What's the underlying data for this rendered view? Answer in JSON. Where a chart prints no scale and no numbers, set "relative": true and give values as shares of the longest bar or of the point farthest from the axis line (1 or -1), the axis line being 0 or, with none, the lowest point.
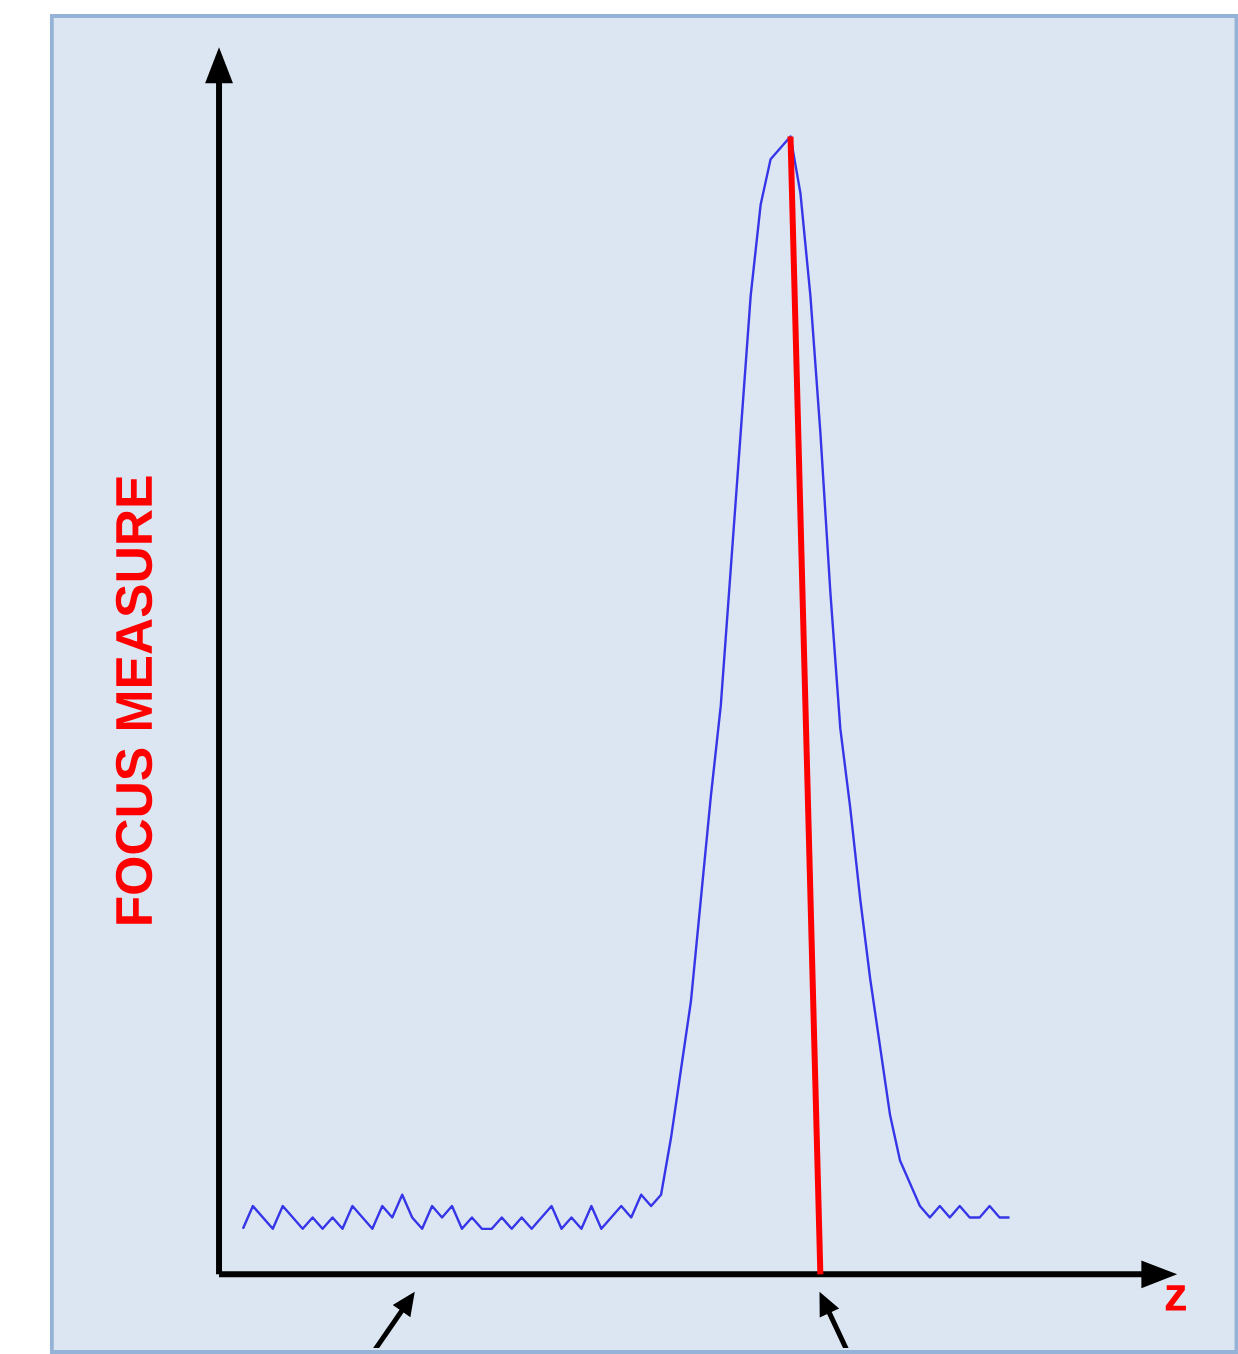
{
  "chart_data": {
    "type": "line",
    "relative": true,
    "xlabel": "z",
    "ylabel": "FOCUS MEASURE",
    "categories": [
      null,
      null,
      null,
      null,
      null,
      null,
      null,
      null,
      null,
      null,
      null,
      null,
      null,
      null,
      null,
      null,
      null,
      null,
      null,
      null,
      null,
      null,
      null,
      null,
      null,
      null,
      null,
      null,
      null,
      null,
      null,
      null,
      null,
      null,
      null,
      null,
      null,
      null,
      null,
      null,
      null,
      null,
      null,
      null,
      null,
      null,
      null,
      null,
      null,
      null,
      null,
      null,
      null,
      null,
      null,
      null,
      null,
      null,
      null,
      null,
      null,
      null,
      null,
      null,
      null,
      null,
      null,
      null,
      null,
      null,
      null,
      null,
      null,
      null,
      null,
      null,
      null,
      null
    ],
    "series": [
      {
        "color": "#3636e8",
        "values": [
          0.04,
          0.06,
          0.05,
          0.04,
          0.06,
          0.05,
          0.04,
          0.05,
          0.04,
          0.05,
          0.04,
          0.06,
          0.05,
          0.04,
          0.06,
          0.05,
          0.07,
          0.05,
          0.04,
          0.06,
          0.05,
          0.06,
          0.04,
          0.05,
          0.04,
          0.04,
          0.05,
          0.04,
          0.05,
          0.04,
          0.05,
          0.06,
          0.04,
          0.05,
          0.04,
          0.06,
          0.04,
          0.05,
          0.06,
          0.05,
          0.07,
          0.06,
          0.07,
          0.12,
          0.18,
          0.24,
          0.33,
          0.42,
          0.5,
          0.62,
          0.74,
          0.86,
          0.94,
          0.98,
          0.99,
          1.0,
          0.95,
          0.86,
          0.74,
          0.6,
          0.48,
          0.41,
          0.33,
          0.26,
          0.2,
          0.14,
          0.1,
          0.08,
          0.06,
          0.05,
          0.06,
          0.05,
          0.06,
          0.05,
          0.05,
          0.06,
          0.05,
          0.05
        ]
      },
      {
        "type": "line",
        "color": "#ff0000",
        "values": [
          null,
          null,
          null,
          null,
          null,
          null,
          null,
          null,
          null,
          null,
          null,
          null,
          null,
          null,
          null,
          null,
          null,
          null,
          null,
          null,
          null,
          null,
          null,
          null,
          null,
          null,
          null,
          null,
          null,
          null,
          null,
          null,
          null,
          null,
          null,
          null,
          null,
          null,
          null,
          null,
          null,
          null,
          null,
          null,
          null,
          null,
          null,
          null,
          null,
          null,
          null,
          null,
          null,
          null,
          null,
          1.0,
          null,
          null,
          0,
          null,
          null,
          null,
          null,
          null,
          null,
          null,
          null,
          null,
          null,
          null,
          null,
          null,
          null,
          null,
          null,
          null,
          null,
          null
        ]
      }
    ]
  }
}
